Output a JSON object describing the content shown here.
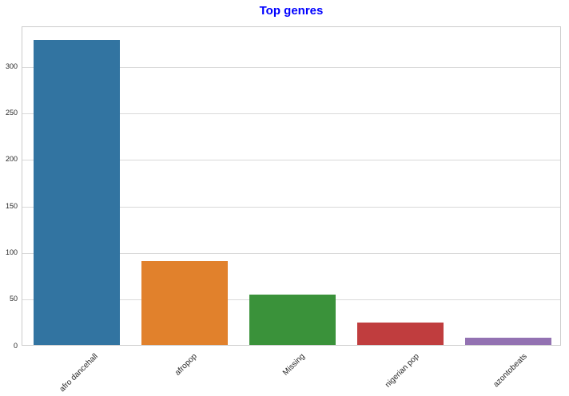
{
  "chart_data": {
    "type": "bar",
    "title": "Top genres",
    "title_color": "#0000ff",
    "categories": [
      "afro dancehall",
      "afropop",
      "Missing",
      "nigerian pop",
      "azontobeats"
    ],
    "values": [
      328,
      90,
      54,
      24,
      8
    ],
    "bar_colors": [
      "#3274a1",
      "#e1812c",
      "#3a923a",
      "#c03d3e",
      "#9372b2"
    ],
    "xlabel": "",
    "ylabel": "",
    "ylim": [
      0,
      343
    ],
    "yticks": [
      0,
      50,
      100,
      150,
      200,
      250,
      300
    ],
    "x_tick_rotation": 45,
    "grid": true,
    "grid_color": "#d9d9d9",
    "spine_color": "#cccccc",
    "tick_label_color": "#262626",
    "legend": "none"
  }
}
